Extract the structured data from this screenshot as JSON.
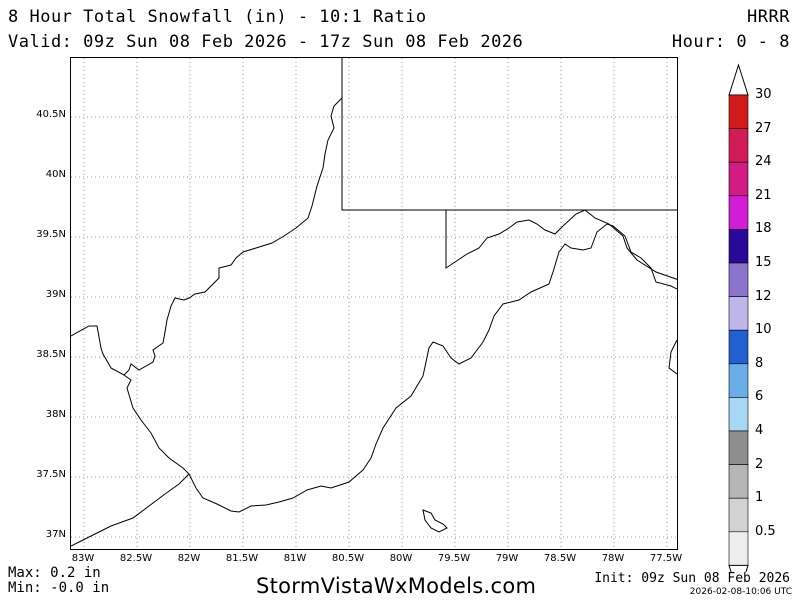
{
  "header": {
    "title": "8 Hour Total Snowfall (in) - 10:1 Ratio",
    "valid": "Valid: 09z Sun 08 Feb 2026 - 17z Sun 08 Feb 2026",
    "model": "HRRR",
    "hour_range": "Hour: 0 - 8"
  },
  "map": {
    "lat_labels": [
      "40.5N",
      "40N",
      "39.5N",
      "39N",
      "38.5N",
      "38N",
      "37.5N",
      "37N"
    ],
    "lon_labels": [
      "83W",
      "82.5W",
      "82W",
      "81.5W",
      "81W",
      "80.5W",
      "80W",
      "79.5W",
      "79W",
      "78.5W",
      "78W",
      "77.5W"
    ],
    "border_color": "#000000",
    "grid_color": "#9a9a9a"
  },
  "legend": {
    "levels": [
      "0.5",
      "1",
      "2",
      "4",
      "6",
      "8",
      "10",
      "12",
      "15",
      "18",
      "21",
      "24",
      "27",
      "30"
    ],
    "colors": [
      "#eeeeee",
      "#d2d2d2",
      "#b6b6b6",
      "#8e8e8e",
      "#a6d8f6",
      "#6aaee8",
      "#2060d0",
      "#beb6ea",
      "#8c74cc",
      "#2a0898",
      "#d21cd6",
      "#d21c84",
      "#d21c58",
      "#d21c1c"
    ]
  },
  "stats": {
    "max": "Max: 0.2 in",
    "min": "Min: -0.0 in"
  },
  "footer": {
    "site": "StormVistaWxModels.com",
    "init": "Init: 09z Sun 08 Feb 2026",
    "timestamp": "2026-02-08-10:06 UTC"
  }
}
